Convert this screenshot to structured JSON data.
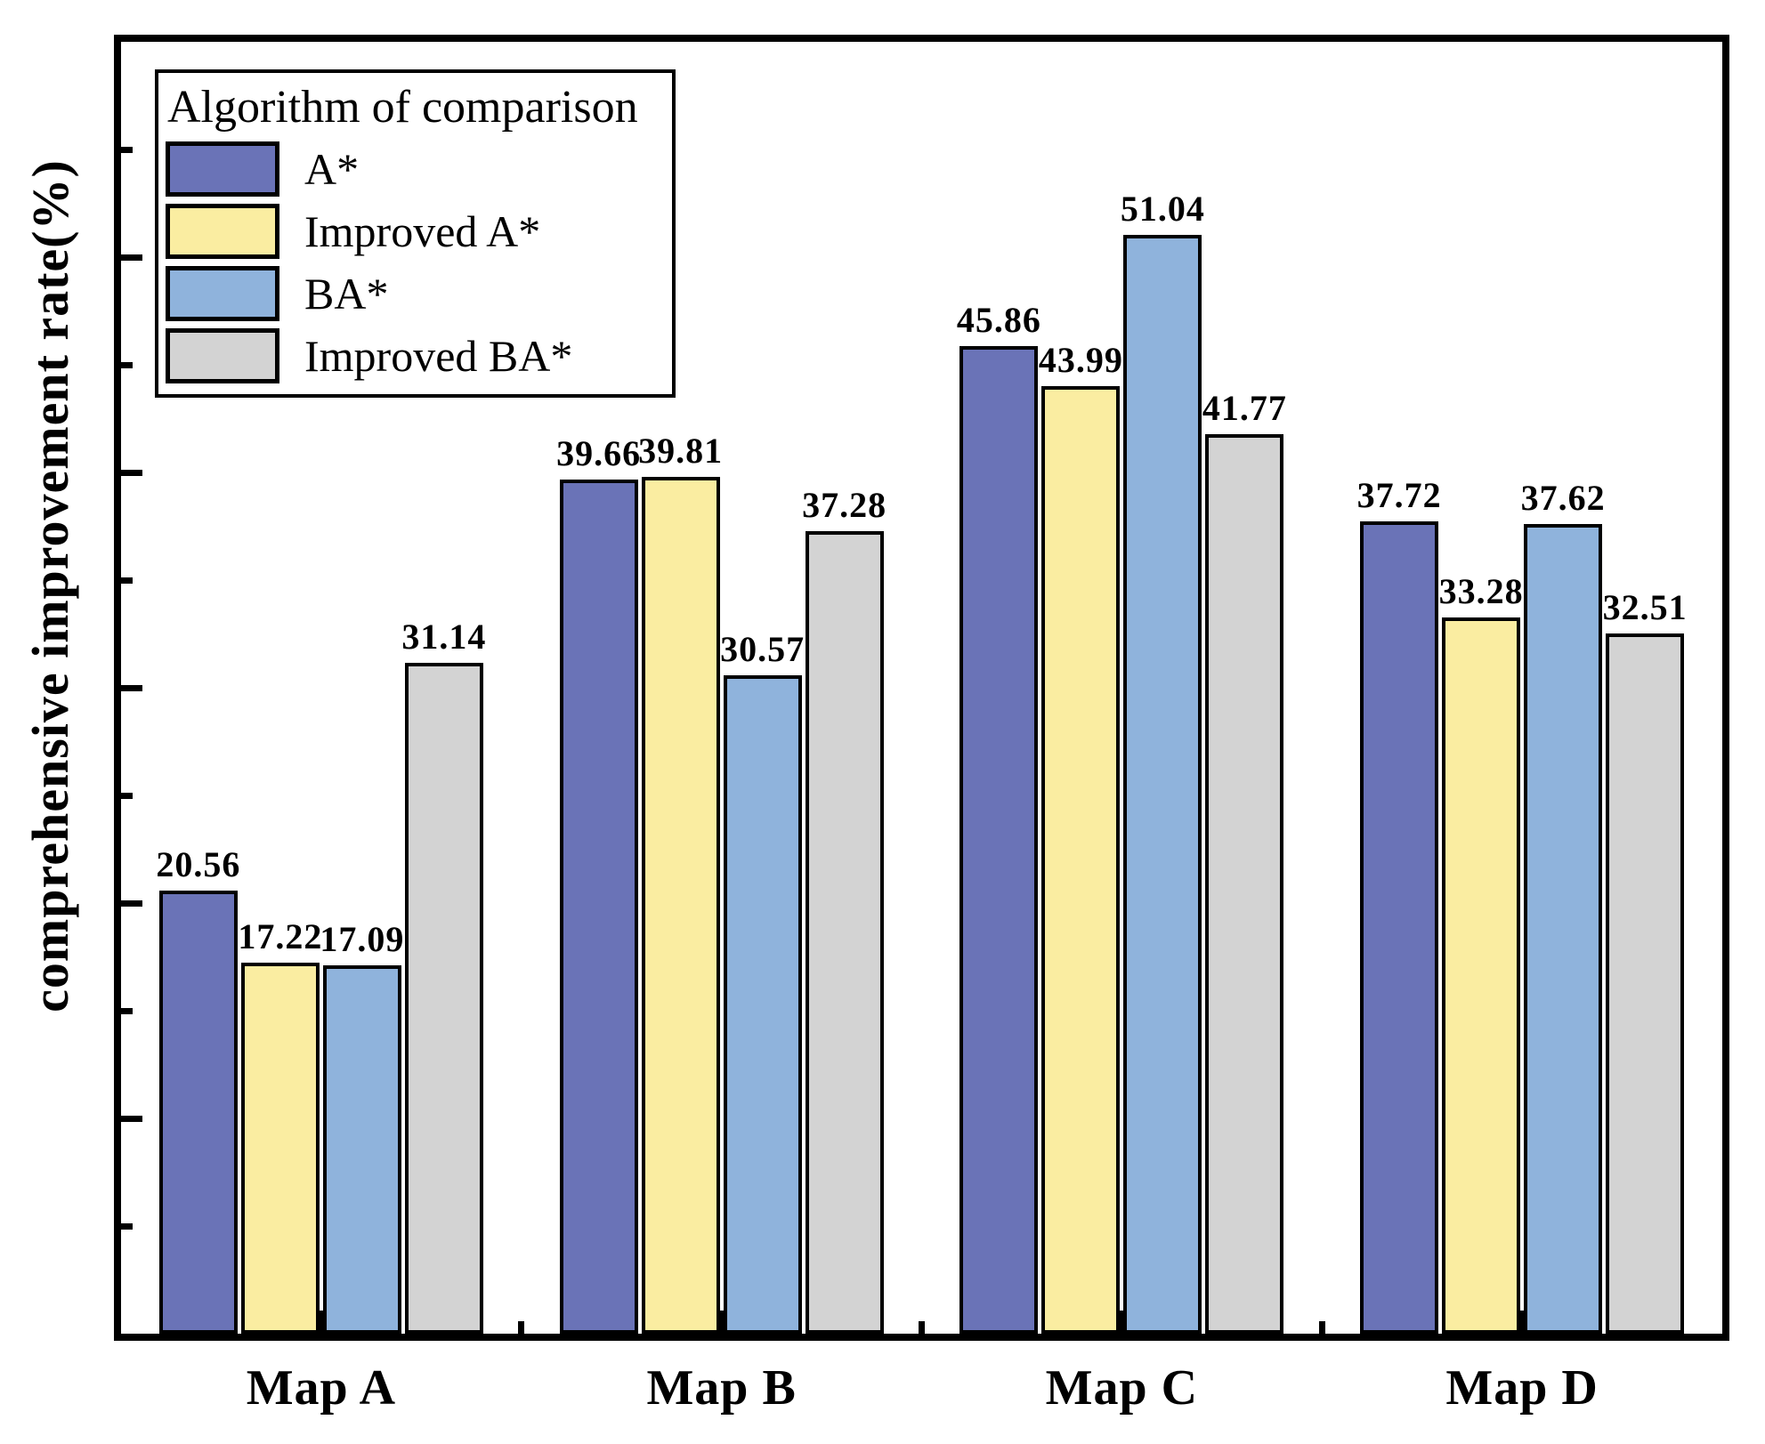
{
  "chart_data": {
    "type": "bar",
    "title": "",
    "ylabel": "comprehensive improvement rate(%)",
    "xlabel": "",
    "categories": [
      "Map A",
      "Map B",
      "Map C",
      "Map D"
    ],
    "series": [
      {
        "name": "A*",
        "color": "#6A73B7",
        "values": [
          20.56,
          39.66,
          45.86,
          37.72
        ]
      },
      {
        "name": "Improved A*",
        "color": "#FAEDA1",
        "values": [
          17.22,
          39.81,
          43.99,
          33.28
        ]
      },
      {
        "name": "BA*",
        "color": "#8FB3DC",
        "values": [
          17.09,
          30.57,
          51.04,
          37.62
        ]
      },
      {
        "name": "Improved BA*",
        "color": "#D3D3D3",
        "values": [
          31.14,
          37.28,
          41.77,
          32.51
        ]
      }
    ],
    "value_label_decimals": 2,
    "legend_title": "Algorithm of comparison",
    "legend_position": "top-left",
    "ylim": [
      0,
      60
    ],
    "y_major_step": 10,
    "y_minor_step": 5,
    "grid": false,
    "axis_color": "#000000",
    "bar_edge_color": "#000000"
  }
}
